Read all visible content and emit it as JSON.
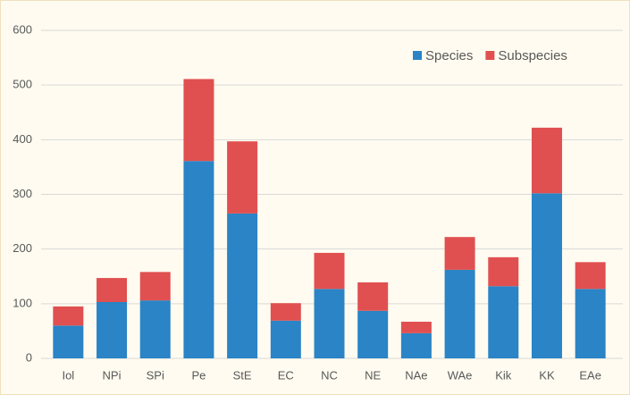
{
  "chart_data": {
    "type": "stacked_bar",
    "categories": [
      "Iol",
      "NPi",
      "SPi",
      "Pe",
      "StE",
      "EC",
      "NC",
      "NE",
      "NAe",
      "WAe",
      "Kik",
      "KK",
      "EAe"
    ],
    "series": [
      {
        "name": "Species",
        "color": "#2a84c6",
        "values": [
          60,
          103,
          106,
          361,
          265,
          69,
          127,
          87,
          46,
          162,
          132,
          302,
          127
        ]
      },
      {
        "name": "Subspecies",
        "color": "#e05050",
        "values": [
          35,
          44,
          52,
          150,
          132,
          32,
          66,
          52,
          21,
          60,
          53,
          120,
          49
        ]
      }
    ],
    "ylim": [
      0,
      600
    ],
    "yticks": [
      0,
      100,
      200,
      300,
      400,
      500,
      600
    ],
    "grid": true,
    "legend": "top-right"
  }
}
